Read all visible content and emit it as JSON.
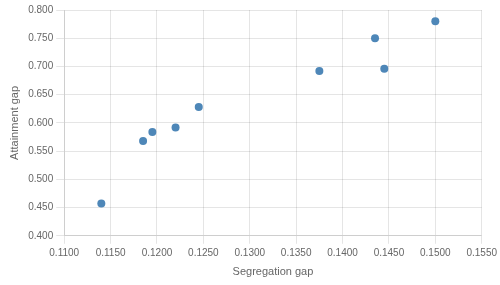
{
  "chart_data": {
    "type": "scatter",
    "x": [
      0.114,
      0.1185,
      0.1195,
      0.122,
      0.1245,
      0.1375,
      0.1435,
      0.1445,
      0.15
    ],
    "y": [
      0.457,
      0.568,
      0.584,
      0.592,
      0.628,
      0.692,
      0.75,
      0.696,
      0.78
    ],
    "color": "#4e87b8",
    "xlabel": "Segregation gap",
    "ylabel": "Attainment gap",
    "xlim": [
      0.11,
      0.155
    ],
    "ylim": [
      0.4,
      0.8
    ],
    "xticks": [
      {
        "value": 0.11,
        "label": "0.1100"
      },
      {
        "value": 0.115,
        "label": "0.1150"
      },
      {
        "value": 0.12,
        "label": "0.1200"
      },
      {
        "value": 0.125,
        "label": "0.1250"
      },
      {
        "value": 0.13,
        "label": "0.1300"
      },
      {
        "value": 0.135,
        "label": "0.1350"
      },
      {
        "value": 0.14,
        "label": "0.1400"
      },
      {
        "value": 0.145,
        "label": "0.1450"
      },
      {
        "value": 0.15,
        "label": "0.1500"
      },
      {
        "value": 0.155,
        "label": "0.1550"
      }
    ],
    "yticks": [
      {
        "value": 0.4,
        "label": "0.400"
      },
      {
        "value": 0.45,
        "label": "0.450"
      },
      {
        "value": 0.5,
        "label": "0.500"
      },
      {
        "value": 0.55,
        "label": "0.550"
      },
      {
        "value": 0.6,
        "label": "0.600"
      },
      {
        "value": 0.65,
        "label": "0.650"
      },
      {
        "value": 0.7,
        "label": "0.700"
      },
      {
        "value": 0.75,
        "label": "0.750"
      },
      {
        "value": 0.8,
        "label": "0.800"
      }
    ],
    "grid": true
  }
}
